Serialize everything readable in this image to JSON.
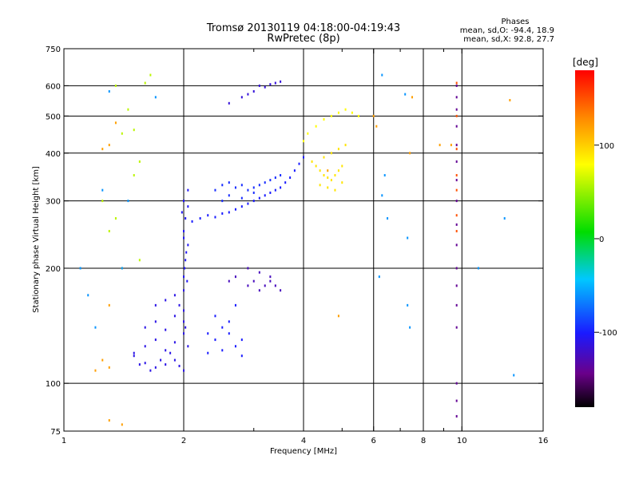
{
  "header": {
    "title_line1": "Tromsø 20130119 04:18:00-04:19:43",
    "title_line2": "RwPretec (8p)",
    "stats_title": "Phases",
    "stats_o": "mean, sd,O: -94.4, 18.9",
    "stats_x": "mean, sd,X:  92.8, 27.7"
  },
  "colorbar": {
    "label": "[deg]",
    "ticks": [
      "100",
      "0",
      "-100"
    ],
    "tick_values": [
      100,
      0,
      -100
    ],
    "range": [
      -180,
      180
    ]
  },
  "chart_data": {
    "type": "scatter",
    "title": "Tromsø 20130119 04:18:00-04:19:43",
    "subtitle": "RwPretec (8p)",
    "xlabel": "Frequency [MHz]",
    "ylabel": "Stationary phase Virtual Height [km]",
    "x_scale": "log",
    "y_scale": "log",
    "xlim": [
      1,
      16
    ],
    "ylim": [
      75,
      750
    ],
    "x_ticks": [
      1,
      2,
      4,
      6,
      8,
      10,
      16
    ],
    "x_tick_labels": [
      "1",
      "2",
      "4",
      "6",
      "8",
      "10",
      "16"
    ],
    "x_minor": [
      3,
      5,
      7,
      9
    ],
    "y_ticks": [
      75,
      100,
      200,
      300,
      400,
      500,
      600,
      750
    ],
    "y_tick_labels": [
      "75",
      "100",
      "200",
      "300",
      "400",
      "500",
      "600",
      "750"
    ],
    "grid": true,
    "color_by": "phase [deg]",
    "series": [
      {
        "values": [
          [
            1.6,
            113
          ],
          [
            1.7,
            110
          ],
          [
            1.8,
            112
          ],
          [
            1.9,
            115
          ],
          [
            2.0,
            108
          ],
          [
            1.5,
            120
          ],
          [
            1.6,
            125
          ],
          [
            1.7,
            130
          ],
          [
            1.8,
            122
          ],
          [
            1.9,
            128
          ],
          [
            2.0,
            135
          ],
          [
            1.6,
            140
          ],
          [
            1.7,
            145
          ],
          [
            1.8,
            138
          ],
          [
            1.9,
            150
          ],
          [
            2.0,
            155
          ],
          [
            1.7,
            160
          ],
          [
            1.8,
            165
          ],
          [
            1.9,
            170
          ],
          [
            2.0,
            175
          ],
          [
            1.5,
            118
          ],
          [
            1.55,
            112
          ],
          [
            1.65,
            108
          ],
          [
            1.75,
            115
          ],
          [
            1.85,
            120
          ],
          [
            1.95,
            111
          ],
          [
            2.05,
            125
          ],
          [
            2.0,
            145
          ],
          [
            1.95,
            160
          ],
          [
            2.02,
            140
          ]
        ],
        "phase": -110
      },
      {
        "values": [
          [
            2.0,
            190
          ],
          [
            2.02,
            210
          ],
          [
            2.05,
            230
          ],
          [
            2.0,
            250
          ],
          [
            2.02,
            270
          ],
          [
            2.05,
            290
          ],
          [
            2.0,
            300
          ],
          [
            2.05,
            320
          ],
          [
            1.98,
            280
          ],
          [
            2.0,
            240
          ],
          [
            2.03,
            220
          ],
          [
            2.01,
            200
          ],
          [
            2.04,
            185
          ]
        ],
        "phase": -105
      },
      {
        "values": [
          [
            2.1,
            265
          ],
          [
            2.2,
            270
          ],
          [
            2.3,
            275
          ],
          [
            2.4,
            272
          ],
          [
            2.5,
            278
          ],
          [
            2.6,
            280
          ],
          [
            2.7,
            285
          ],
          [
            2.8,
            290
          ],
          [
            2.9,
            295
          ],
          [
            3.0,
            300
          ],
          [
            3.1,
            305
          ],
          [
            3.2,
            310
          ],
          [
            3.3,
            315
          ],
          [
            3.4,
            320
          ],
          [
            3.5,
            325
          ],
          [
            3.6,
            335
          ],
          [
            3.7,
            345
          ],
          [
            3.8,
            360
          ],
          [
            3.9,
            375
          ],
          [
            4.0,
            390
          ]
        ],
        "phase": -100
      },
      {
        "values": [
          [
            2.4,
            320
          ],
          [
            2.5,
            330
          ],
          [
            2.6,
            335
          ],
          [
            2.7,
            325
          ],
          [
            2.8,
            330
          ],
          [
            2.9,
            320
          ],
          [
            3.0,
            325
          ],
          [
            3.1,
            330
          ],
          [
            3.2,
            335
          ],
          [
            3.3,
            340
          ],
          [
            3.4,
            345
          ],
          [
            3.5,
            350
          ],
          [
            2.5,
            300
          ],
          [
            2.6,
            310
          ],
          [
            2.8,
            305
          ],
          [
            3.0,
            315
          ]
        ],
        "phase": -95
      },
      {
        "values": [
          [
            2.3,
            135
          ],
          [
            2.4,
            130
          ],
          [
            2.5,
            140
          ],
          [
            2.6,
            135
          ],
          [
            2.7,
            125
          ],
          [
            2.8,
            130
          ],
          [
            2.4,
            150
          ],
          [
            2.6,
            145
          ],
          [
            2.7,
            160
          ],
          [
            2.3,
            120
          ],
          [
            2.5,
            122
          ],
          [
            2.8,
            118
          ]
        ],
        "phase": -100
      },
      {
        "values": [
          [
            2.6,
            185
          ],
          [
            2.7,
            190
          ],
          [
            2.9,
            180
          ],
          [
            3.0,
            185
          ],
          [
            3.1,
            175
          ],
          [
            3.2,
            180
          ],
          [
            3.3,
            185
          ],
          [
            3.4,
            180
          ],
          [
            3.5,
            175
          ],
          [
            2.9,
            200
          ],
          [
            3.1,
            195
          ],
          [
            3.3,
            190
          ]
        ],
        "phase": -125
      },
      {
        "values": [
          [
            3.1,
            600
          ],
          [
            3.2,
            595
          ],
          [
            3.3,
            605
          ],
          [
            3.4,
            610
          ],
          [
            3.5,
            615
          ],
          [
            2.8,
            560
          ],
          [
            2.9,
            570
          ],
          [
            3.0,
            580
          ],
          [
            2.6,
            540
          ]
        ],
        "phase": -115
      },
      {
        "values": [
          [
            4.2,
            380
          ],
          [
            4.3,
            370
          ],
          [
            4.4,
            360
          ],
          [
            4.5,
            350
          ],
          [
            4.6,
            345
          ],
          [
            4.7,
            340
          ],
          [
            4.8,
            350
          ],
          [
            4.9,
            360
          ],
          [
            5.0,
            370
          ],
          [
            4.4,
            330
          ],
          [
            4.6,
            325
          ],
          [
            4.8,
            320
          ],
          [
            5.0,
            335
          ],
          [
            4.5,
            390
          ],
          [
            4.7,
            400
          ],
          [
            4.9,
            410
          ],
          [
            5.1,
            420
          ]
        ],
        "phase": 90
      },
      {
        "values": [
          [
            4.0,
            430
          ],
          [
            4.1,
            450
          ],
          [
            4.3,
            470
          ],
          [
            4.5,
            490
          ],
          [
            4.7,
            500
          ],
          [
            4.9,
            510
          ],
          [
            5.1,
            520
          ],
          [
            5.3,
            510
          ],
          [
            5.5,
            500
          ]
        ],
        "phase": 80
      },
      {
        "values": [
          [
            9.7,
            600
          ],
          [
            9.7,
            560
          ],
          [
            9.7,
            520
          ],
          [
            9.7,
            470
          ],
          [
            9.7,
            420
          ],
          [
            9.7,
            380
          ],
          [
            9.7,
            340
          ],
          [
            9.7,
            300
          ],
          [
            9.7,
            260
          ],
          [
            9.7,
            230
          ],
          [
            9.7,
            200
          ],
          [
            9.7,
            180
          ],
          [
            9.7,
            160
          ],
          [
            9.7,
            140
          ],
          [
            9.7,
            100
          ],
          [
            9.7,
            90
          ],
          [
            9.7,
            82
          ]
        ],
        "phase": -140
      },
      {
        "values": [
          [
            9.7,
            610
          ],
          [
            9.7,
            500
          ],
          [
            9.7,
            410
          ],
          [
            9.7,
            350
          ],
          [
            9.7,
            320
          ],
          [
            9.7,
            275
          ],
          [
            9.7,
            250
          ]
        ],
        "phase": 150
      },
      {
        "values": [
          [
            1.35,
            600
          ],
          [
            1.4,
            450
          ],
          [
            1.45,
            520
          ],
          [
            1.5,
            460
          ],
          [
            1.55,
            380
          ],
          [
            1.6,
            610
          ],
          [
            1.65,
            640
          ],
          [
            1.25,
            300
          ],
          [
            1.3,
            250
          ],
          [
            1.35,
            270
          ],
          [
            1.4,
            200
          ],
          [
            1.5,
            350
          ],
          [
            1.55,
            210
          ]
        ],
        "phase": 60
      },
      {
        "values": [
          [
            1.1,
            200
          ],
          [
            1.15,
            170
          ],
          [
            1.2,
            140
          ],
          [
            1.25,
            320
          ],
          [
            1.3,
            580
          ],
          [
            1.4,
            200
          ],
          [
            1.45,
            300
          ],
          [
            1.7,
            560
          ],
          [
            6.3,
            640
          ],
          [
            6.4,
            350
          ],
          [
            6.5,
            270
          ],
          [
            7.2,
            570
          ],
          [
            7.3,
            240
          ],
          [
            7.4,
            140
          ],
          [
            7.3,
            160
          ],
          [
            12.8,
            270
          ],
          [
            13.5,
            105
          ],
          [
            11.0,
            200
          ],
          [
            6.2,
            190
          ],
          [
            6.3,
            310
          ]
        ],
        "phase": -60
      },
      {
        "values": [
          [
            1.25,
            410
          ],
          [
            1.3,
            420
          ],
          [
            1.3,
            160
          ],
          [
            1.35,
            480
          ],
          [
            1.25,
            115
          ],
          [
            1.3,
            110
          ],
          [
            1.2,
            108
          ],
          [
            1.4,
            78
          ],
          [
            1.3,
            80
          ],
          [
            13.2,
            550
          ],
          [
            6.1,
            470
          ],
          [
            6.0,
            500
          ],
          [
            7.4,
            400
          ],
          [
            7.5,
            560
          ],
          [
            8.8,
            420
          ],
          [
            9.4,
            420
          ],
          [
            4.9,
            150
          ],
          [
            4.6,
            360
          ]
        ],
        "phase": 120
      }
    ]
  }
}
